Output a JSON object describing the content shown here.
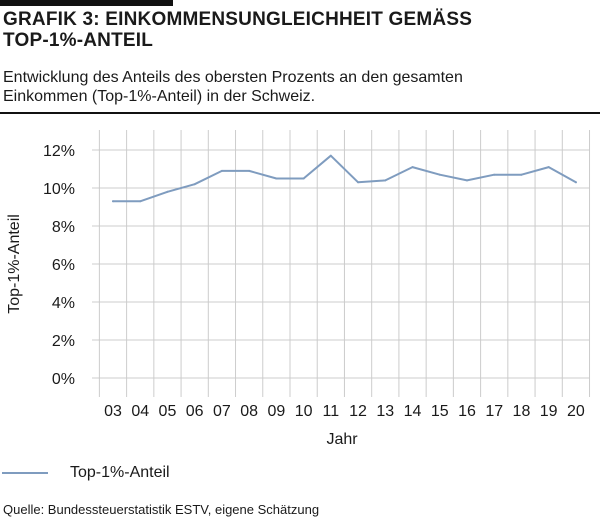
{
  "header": {
    "title_line1": "GRAFIK 3: EINKOMMENSUNGLEICHHEIT GEMÄSS",
    "title_line2": "TOP-1%-ANTEIL",
    "subtitle_line1": "Entwicklung des Anteils des obersten Prozents an den gesamten",
    "subtitle_line2": "Einkommen (Top-1%-Anteil) in der Schweiz."
  },
  "footer": {
    "source": "Quelle: Bundessteuerstatistik ESTV, eigene Schätzung"
  },
  "colors": {
    "line": "#7f9cbf",
    "grid": "#cccccc",
    "text": "#1a1a1a",
    "rule": "#111111"
  },
  "chart_data": {
    "type": "line",
    "title": "",
    "xlabel": "Jahr",
    "ylabel": "Top-1%-Anteil",
    "categories": [
      "03",
      "04",
      "05",
      "06",
      "07",
      "08",
      "09",
      "10",
      "11",
      "12",
      "13",
      "14",
      "15",
      "16",
      "17",
      "18",
      "19",
      "20"
    ],
    "yticks": [
      "0%",
      "2%",
      "4%",
      "6%",
      "8%",
      "10%",
      "12%"
    ],
    "ylim": [
      0,
      12
    ],
    "grid": true,
    "legend_position": "bottom-left",
    "series": [
      {
        "name": "Top-1%-Anteil",
        "values": [
          9.3,
          9.3,
          9.8,
          10.2,
          10.9,
          10.9,
          10.5,
          10.5,
          11.7,
          10.3,
          10.4,
          11.1,
          10.7,
          10.4,
          10.7,
          10.7,
          11.1,
          10.3
        ]
      }
    ]
  }
}
